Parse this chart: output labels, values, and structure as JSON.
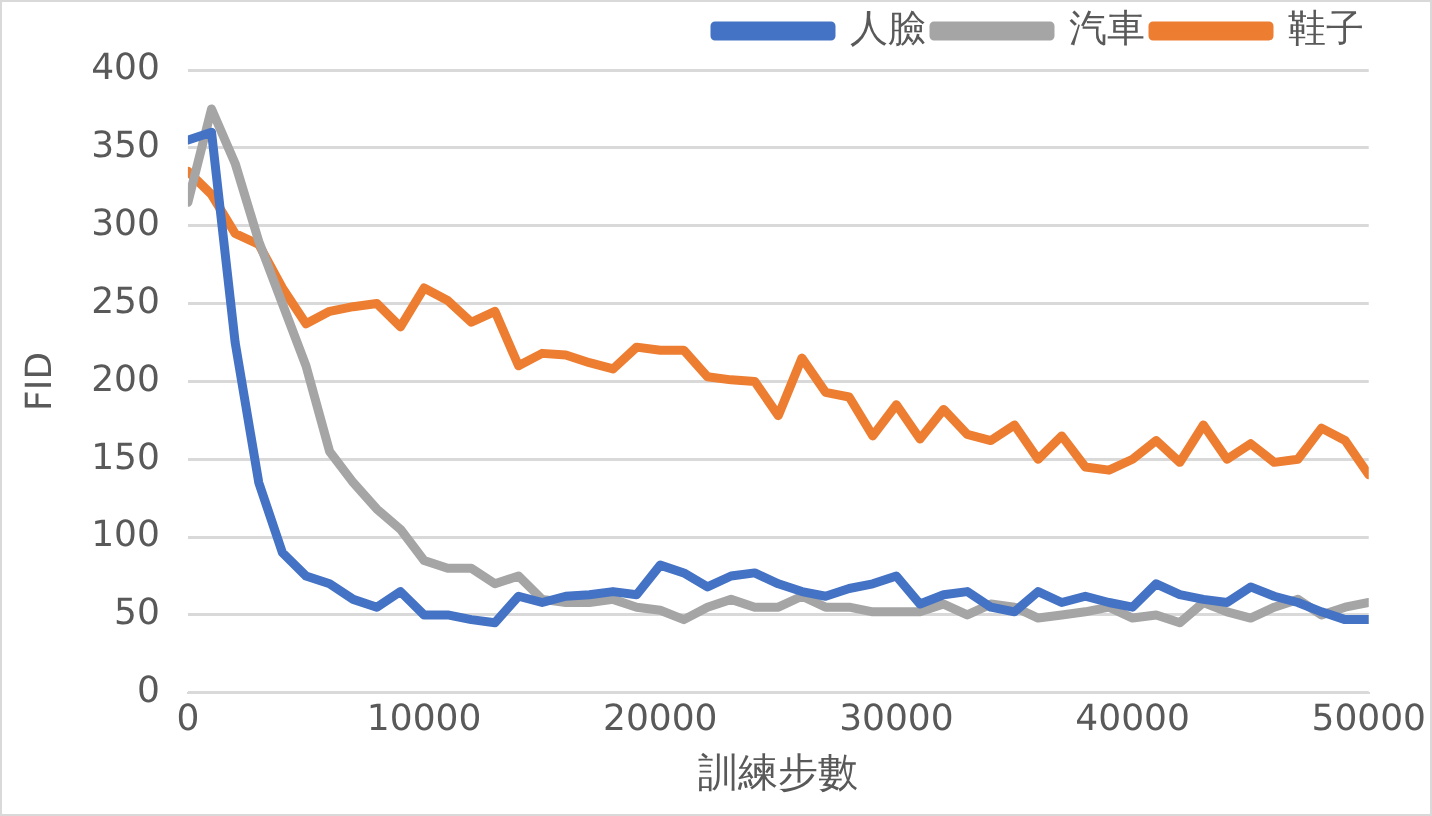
{
  "chart_data": {
    "type": "line",
    "xlabel": "訓練步數",
    "ylabel": "FID",
    "x": [
      0,
      1000,
      2000,
      3000,
      4000,
      5000,
      6000,
      7000,
      8000,
      9000,
      10000,
      11000,
      12000,
      13000,
      14000,
      15000,
      16000,
      17000,
      18000,
      19000,
      20000,
      21000,
      22000,
      23000,
      24000,
      25000,
      26000,
      27000,
      28000,
      29000,
      30000,
      31000,
      32000,
      33000,
      34000,
      35000,
      36000,
      37000,
      38000,
      39000,
      40000,
      41000,
      42000,
      43000,
      44000,
      45000,
      46000,
      47000,
      48000,
      49000,
      50000
    ],
    "series": [
      {
        "name": "人臉",
        "color": "#4472c4",
        "values": [
          355,
          360,
          225,
          135,
          90,
          75,
          70,
          60,
          55,
          65,
          50,
          50,
          47,
          45,
          62,
          58,
          62,
          63,
          65,
          63,
          82,
          77,
          68,
          75,
          77,
          70,
          65,
          62,
          67,
          70,
          75,
          57,
          63,
          65,
          55,
          52,
          65,
          58,
          62,
          58,
          55,
          70,
          63,
          60,
          58,
          68,
          62,
          58,
          52,
          47,
          47
        ]
      },
      {
        "name": "汽車",
        "color": "#a5a5a5",
        "values": [
          315,
          375,
          340,
          290,
          250,
          210,
          155,
          135,
          118,
          105,
          85,
          80,
          80,
          70,
          75,
          60,
          58,
          58,
          60,
          55,
          53,
          47,
          55,
          60,
          55,
          55,
          62,
          55,
          55,
          52,
          52,
          52,
          57,
          50,
          57,
          55,
          48,
          50,
          52,
          55,
          48,
          50,
          45,
          58,
          52,
          48,
          55,
          60,
          50,
          55,
          58
        ]
      },
      {
        "name": "鞋子",
        "color": "#ed7d31",
        "values": [
          335,
          320,
          295,
          288,
          260,
          237,
          245,
          248,
          250,
          235,
          260,
          252,
          238,
          245,
          210,
          218,
          217,
          212,
          208,
          222,
          220,
          220,
          203,
          201,
          200,
          178,
          215,
          193,
          190,
          165,
          185,
          163,
          182,
          166,
          162,
          172,
          150,
          165,
          145,
          143,
          150,
          162,
          148,
          172,
          150,
          160,
          148,
          150,
          170,
          162,
          140
        ]
      }
    ],
    "xlim": [
      0,
      50000
    ],
    "xticks": [
      0,
      10000,
      20000,
      30000,
      40000,
      50000
    ],
    "ylim": [
      0,
      400
    ],
    "yticks": [
      0,
      50,
      100,
      150,
      200,
      250,
      300,
      350,
      400
    ],
    "grid": "y",
    "legend": "top right",
    "marker": "none",
    "line_style": "solid"
  }
}
